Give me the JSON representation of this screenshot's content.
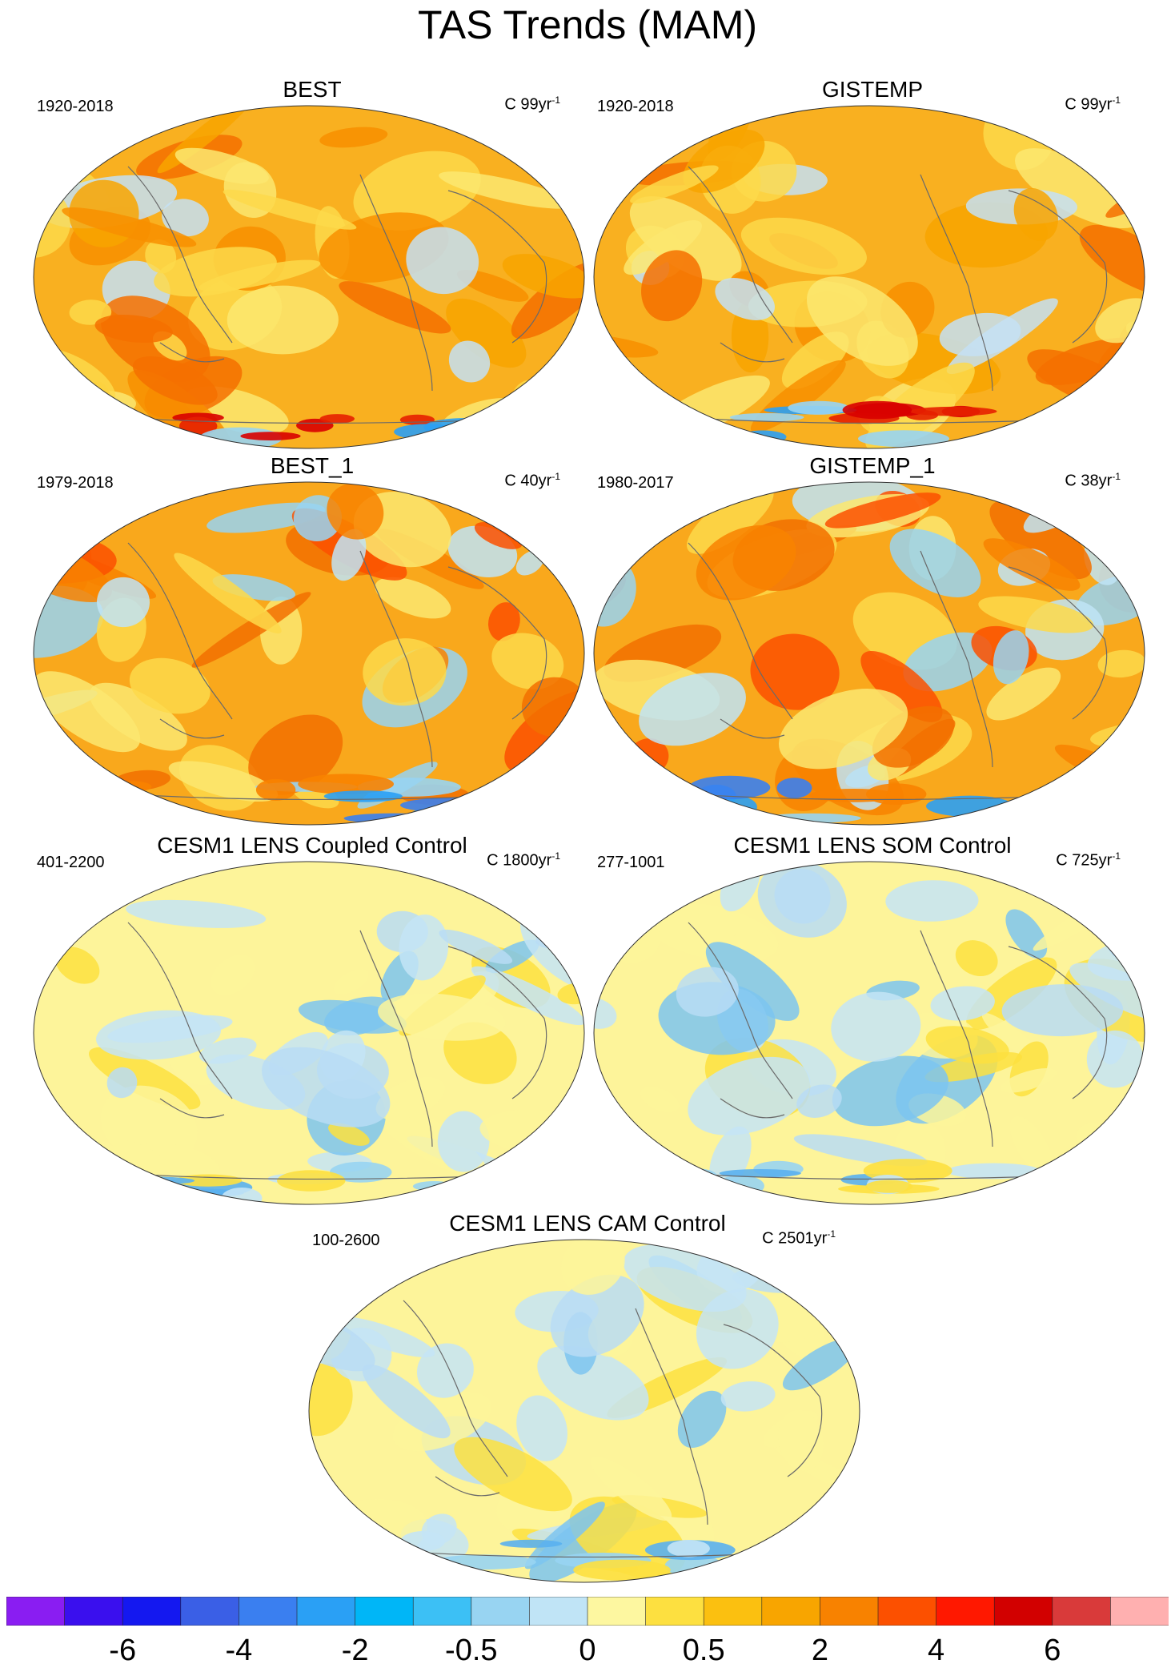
{
  "title": "TAS Trends (MAM)",
  "panels": [
    {
      "title": "BEST",
      "period": "1920-2018",
      "units_prefix": "C 99yr",
      "units_exp": "-1",
      "theme": "warm"
    },
    {
      "title": "GISTEMP",
      "period": "1920-2018",
      "units_prefix": "C 99yr",
      "units_exp": "-1",
      "theme": "warm"
    },
    {
      "title": "BEST_1",
      "period": "1979-2018",
      "units_prefix": "C 40yr",
      "units_exp": "-1",
      "theme": "hot"
    },
    {
      "title": "GISTEMP_1",
      "period": "1980-2017",
      "units_prefix": "C 38yr",
      "units_exp": "-1",
      "theme": "hot"
    },
    {
      "title": "CESM1 LENS Coupled Control",
      "period": "401-2200",
      "units_prefix": "C 1800yr",
      "units_exp": "-1",
      "theme": "neutral"
    },
    {
      "title": "CESM1 LENS SOM Control",
      "period": "277-1001",
      "units_prefix": "C 725yr",
      "units_exp": "-1",
      "theme": "neutral"
    },
    {
      "title": "CESM1 LENS CAM Control",
      "period": "100-2600",
      "units_prefix": "C 2501yr",
      "units_exp": "-1",
      "theme": "neutral"
    }
  ],
  "colorbar": {
    "colors": [
      "#8a1df2",
      "#3a0fee",
      "#1418f0",
      "#3a5fe6",
      "#3a7ff0",
      "#2aa0f5",
      "#00b6f7",
      "#3cc0f5",
      "#98d4f2",
      "#c0e4f6",
      "#fdf7a0",
      "#fde040",
      "#fbc010",
      "#f8a500",
      "#f88200",
      "#fc5000",
      "#ff1800",
      "#d20000",
      "#d93a3a",
      "#ffb0b0"
    ],
    "labels": [
      "-6",
      "-4",
      "-2",
      "-0.5",
      "0",
      "0.5",
      "2",
      "4",
      "6"
    ],
    "label_boundary_index": [
      2,
      4,
      6,
      8,
      10,
      12,
      14,
      16,
      18
    ]
  }
}
